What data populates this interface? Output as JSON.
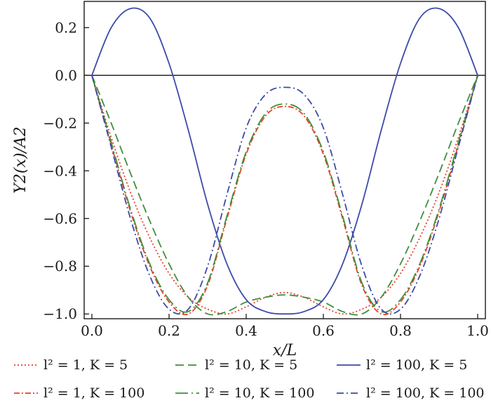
{
  "chart_data": {
    "type": "line",
    "xlabel": "x/L",
    "ylabel": "Y2(x)/A2",
    "xlim": [
      -0.02,
      1.02
    ],
    "ylim": [
      -1.02,
      0.31
    ],
    "xticks": [
      0.0,
      0.2,
      0.4,
      0.6,
      0.8,
      1.0
    ],
    "yticks": [
      0.2,
      0.0,
      -0.2,
      -0.4,
      -0.6,
      -0.8,
      -1.0
    ],
    "xtick_labels": [
      "0.0",
      "0.2",
      "0.4",
      "0.6",
      "0.8",
      "1.0"
    ],
    "ytick_labels": [
      "0.2",
      "0.0",
      "−0.2",
      "−0.4",
      "−0.6",
      "−0.8",
      "−1.0"
    ],
    "grid": false,
    "zero_line": true,
    "legend_position": "below",
    "x": [
      0.0,
      0.05,
      0.1,
      0.15,
      0.2,
      0.25,
      0.3,
      0.35,
      0.4,
      0.45,
      0.5,
      0.55,
      0.6,
      0.65,
      0.7,
      0.75,
      0.8,
      0.85,
      0.9,
      0.95,
      1.0
    ],
    "series": [
      {
        "name": "l² = 1, K = 5",
        "color": "#e8402a",
        "dash": "2,3",
        "values": [
          0.0,
          -0.26,
          -0.49,
          -0.68,
          -0.83,
          -0.93,
          -0.98,
          -1.0,
          -0.97,
          -0.93,
          -0.91,
          -0.93,
          -0.97,
          -1.0,
          -0.98,
          -0.93,
          -0.83,
          -0.68,
          -0.49,
          -0.26,
          0.0
        ]
      },
      {
        "name": "l² = 10, K = 5",
        "color": "#3f8f3a",
        "dash": "12,6",
        "values": [
          0.0,
          -0.2,
          -0.41,
          -0.61,
          -0.79,
          -0.93,
          -1.0,
          -0.99,
          -0.95,
          -0.93,
          -0.92,
          -0.93,
          -0.95,
          -0.99,
          -1.0,
          -0.93,
          -0.79,
          -0.61,
          -0.41,
          -0.2,
          0.0
        ]
      },
      {
        "name": "l² = 100, K = 5",
        "color": "#3d4aa8",
        "dash": "",
        "values": [
          0.0,
          0.2,
          0.28,
          0.24,
          0.05,
          -0.23,
          -0.54,
          -0.79,
          -0.94,
          -0.99,
          -1.0,
          -0.99,
          -0.94,
          -0.79,
          -0.54,
          -0.23,
          0.05,
          0.24,
          0.28,
          0.2,
          0.0
        ]
      },
      {
        "name": "l² = 1, K = 100",
        "color": "#e8402a",
        "dash": "8,3,2,3",
        "values": [
          0.0,
          -0.29,
          -0.57,
          -0.8,
          -0.95,
          -1.0,
          -0.88,
          -0.6,
          -0.33,
          -0.17,
          -0.13,
          -0.17,
          -0.33,
          -0.6,
          -0.88,
          -1.0,
          -0.95,
          -0.8,
          -0.57,
          -0.29,
          0.0
        ]
      },
      {
        "name": "l² = 10, K = 100",
        "color": "#3f8f3a",
        "dash": "18,5,2,5",
        "values": [
          0.0,
          -0.28,
          -0.56,
          -0.79,
          -0.94,
          -0.99,
          -0.87,
          -0.59,
          -0.32,
          -0.16,
          -0.12,
          -0.16,
          -0.32,
          -0.59,
          -0.87,
          -0.99,
          -0.94,
          -0.79,
          -0.56,
          -0.28,
          0.0
        ]
      },
      {
        "name": "l² = 100, K = 100",
        "color": "#3d4aa8",
        "dash": "10,4,2,4",
        "values": [
          0.0,
          -0.3,
          -0.6,
          -0.84,
          -0.98,
          -0.98,
          -0.8,
          -0.5,
          -0.22,
          -0.08,
          -0.05,
          -0.08,
          -0.22,
          -0.5,
          -0.8,
          -0.98,
          -0.98,
          -0.84,
          -0.6,
          -0.3,
          0.0
        ]
      }
    ]
  }
}
